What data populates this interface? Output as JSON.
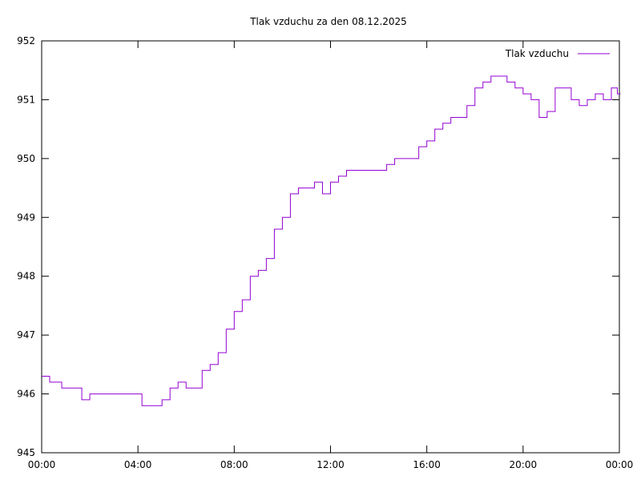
{
  "chart_data": {
    "type": "line",
    "title": "Tlak vzduchu za den 08.12.2025",
    "xlabel": "",
    "ylabel": "",
    "xlim": [
      "00:00",
      "24:00"
    ],
    "ylim": [
      945,
      952
    ],
    "x_ticks": [
      "00:00",
      "04:00",
      "08:00",
      "12:00",
      "16:00",
      "20:00",
      "00:00"
    ],
    "y_ticks": [
      "945",
      "946",
      "947",
      "948",
      "949",
      "950",
      "951",
      "952"
    ],
    "grid": false,
    "legend_position": "top-right",
    "series": [
      {
        "name": "Tlak vzduchu",
        "color": "#9400d3",
        "x": [
          "00:00",
          "00:20",
          "00:50",
          "01:00",
          "01:40",
          "02:00",
          "03:00",
          "04:00",
          "04:10",
          "04:40",
          "05:00",
          "05:20",
          "05:40",
          "06:00",
          "06:30",
          "06:40",
          "07:00",
          "07:20",
          "07:40",
          "08:00",
          "08:20",
          "08:40",
          "09:00",
          "09:20",
          "09:40",
          "10:00",
          "10:20",
          "10:40",
          "11:00",
          "11:20",
          "11:40",
          "12:00",
          "12:20",
          "12:40",
          "13:00",
          "14:00",
          "14:20",
          "14:40",
          "15:20",
          "15:40",
          "16:00",
          "16:20",
          "16:40",
          "17:00",
          "17:20",
          "17:40",
          "18:00",
          "18:20",
          "18:40",
          "19:00",
          "19:20",
          "19:40",
          "20:00",
          "20:20",
          "20:40",
          "21:00",
          "21:20",
          "21:40",
          "22:00",
          "22:20",
          "22:40",
          "23:00",
          "23:20",
          "23:40",
          "23:55"
        ],
        "y": [
          946.3,
          946.2,
          946.1,
          946.1,
          945.9,
          946.0,
          946.0,
          946.0,
          945.8,
          945.8,
          945.9,
          946.1,
          946.2,
          946.1,
          946.1,
          946.4,
          946.5,
          946.7,
          947.1,
          947.4,
          947.6,
          948.0,
          948.1,
          948.3,
          948.8,
          949.0,
          949.4,
          949.5,
          949.5,
          949.6,
          949.4,
          949.6,
          949.7,
          949.8,
          949.8,
          949.8,
          949.9,
          950.0,
          950.0,
          950.2,
          950.3,
          950.5,
          950.6,
          950.7,
          950.7,
          950.9,
          951.2,
          951.3,
          951.4,
          951.4,
          951.3,
          951.2,
          951.1,
          951.0,
          950.7,
          950.8,
          951.2,
          951.2,
          951.0,
          950.9,
          951.0,
          951.1,
          951.0,
          951.2,
          951.1
        ]
      }
    ]
  }
}
